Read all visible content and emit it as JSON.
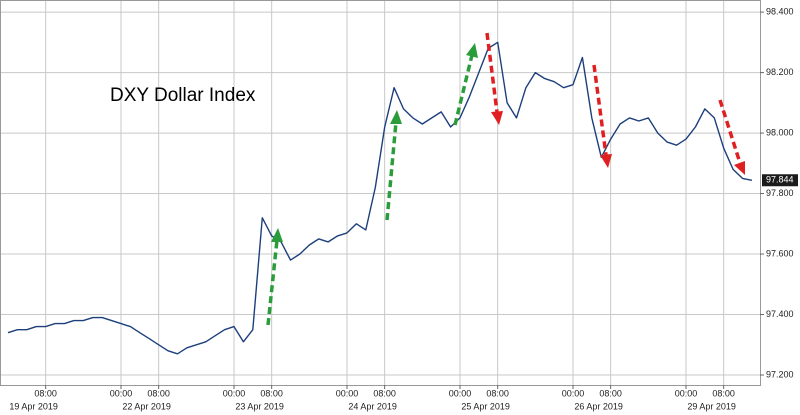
{
  "chart_data": {
    "type": "line",
    "title": "DXY Dollar Index",
    "categories": [
      null,
      null,
      null,
      null,
      "08:00",
      null,
      null,
      null,
      null,
      null,
      null,
      null,
      "00:00",
      null,
      null,
      null,
      "08:00",
      null,
      null,
      null,
      null,
      null,
      null,
      null,
      "00:00",
      null,
      null,
      null,
      "08:00",
      null,
      null,
      null,
      null,
      null,
      null,
      null,
      "00:00",
      null,
      null,
      null,
      "08:00",
      null,
      null,
      null,
      null,
      null,
      null,
      null,
      "00:00",
      null,
      null,
      null,
      "08:00",
      null,
      null,
      null,
      null,
      null,
      null,
      null,
      "00:00",
      null,
      null,
      null,
      "08:00",
      null,
      null,
      null,
      null,
      null,
      null,
      null,
      "00:00",
      null,
      null,
      null,
      "08:00",
      null,
      null,
      null
    ],
    "date_labels": [
      null,
      null,
      null,
      null,
      "19 Apr 2019",
      null,
      null,
      null,
      null,
      null,
      null,
      null,
      null,
      null,
      null,
      null,
      "22 Apr 2019",
      null,
      null,
      null,
      null,
      null,
      null,
      null,
      null,
      null,
      null,
      null,
      "23 Apr 2019",
      null,
      null,
      null,
      null,
      null,
      null,
      null,
      null,
      null,
      null,
      null,
      "24 Apr 2019",
      null,
      null,
      null,
      null,
      null,
      null,
      null,
      null,
      null,
      null,
      null,
      "25 Apr 2019",
      null,
      null,
      null,
      null,
      null,
      null,
      null,
      null,
      null,
      null,
      null,
      "26 Apr 2019",
      null,
      null,
      null,
      null,
      null,
      null,
      null,
      null,
      null,
      null,
      null,
      "29 Apr 2019",
      null,
      null,
      null
    ],
    "series": [
      {
        "name": "DXY",
        "color": "#1d3f7c",
        "values": [
          97.34,
          97.35,
          97.35,
          97.36,
          97.36,
          97.37,
          97.37,
          97.38,
          97.38,
          97.39,
          97.39,
          97.38,
          97.37,
          97.36,
          97.34,
          97.32,
          97.3,
          97.28,
          97.27,
          97.29,
          97.3,
          97.31,
          97.33,
          97.35,
          97.36,
          97.31,
          97.35,
          97.72,
          97.66,
          97.64,
          97.58,
          97.6,
          97.63,
          97.65,
          97.64,
          97.66,
          97.67,
          97.7,
          97.68,
          97.82,
          98.02,
          98.15,
          98.08,
          98.05,
          98.03,
          98.05,
          98.07,
          98.02,
          98.05,
          98.12,
          98.2,
          98.28,
          98.3,
          98.1,
          98.05,
          98.15,
          98.2,
          98.18,
          98.17,
          98.15,
          98.16,
          98.25,
          98.05,
          97.92,
          97.98,
          98.03,
          98.05,
          98.04,
          98.05,
          98.0,
          97.97,
          97.96,
          97.98,
          98.02,
          98.08,
          98.05,
          97.95,
          97.88,
          97.85,
          97.844
        ]
      }
    ],
    "last_value_label": "97.844",
    "ylim": [
      97.167,
      98.44
    ],
    "yticks": [
      {
        "value": 97.2,
        "label": "97.200"
      },
      {
        "value": 97.4,
        "label": "97.400"
      },
      {
        "value": 97.6,
        "label": "97.600"
      },
      {
        "value": 97.8,
        "label": "97.800"
      },
      {
        "value": 98.0,
        "label": "98.000"
      },
      {
        "value": 98.2,
        "label": "98.200"
      },
      {
        "value": 98.4,
        "label": "98.400"
      }
    ],
    "grid": true
  }
}
